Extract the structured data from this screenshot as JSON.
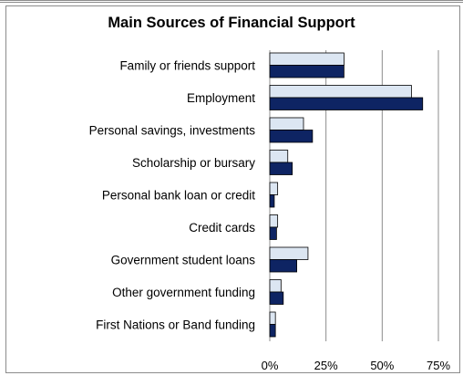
{
  "chart_data": {
    "type": "bar",
    "orientation": "horizontal",
    "title": "Main Sources of Financial Support",
    "xlabel": "",
    "ylabel": "",
    "categories": [
      "Family or friends support",
      "Employment",
      "Personal savings, investments",
      "Scholarship or bursary",
      "Personal bank loan or credit",
      "Credit cards",
      "Government student loans",
      "Other government funding",
      "First Nations or Band funding"
    ],
    "series": [
      {
        "values": [
          33,
          63,
          15,
          8,
          3.5,
          3.5,
          17,
          5,
          2.5
        ],
        "color": "#dce6f2"
      },
      {
        "values": [
          33,
          68,
          19,
          10,
          2,
          3,
          12,
          6,
          2.5
        ],
        "color": "#0e2463"
      }
    ],
    "xlim": [
      0,
      75
    ],
    "xticks": [
      "0%",
      "25%",
      "50%",
      "75%"
    ],
    "grid": true,
    "legend": "none"
  }
}
